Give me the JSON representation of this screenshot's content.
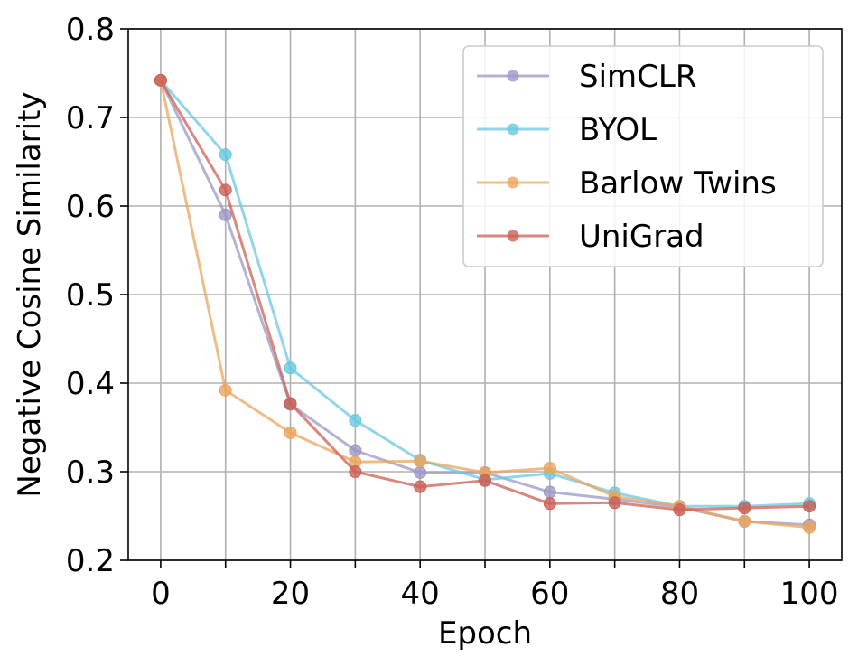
{
  "chart_data": {
    "type": "line",
    "title": "",
    "xlabel": "Epoch",
    "ylabel": "Negative Cosine Similarity",
    "xlim": [
      -5,
      105
    ],
    "ylim": [
      0.2,
      0.8
    ],
    "xticks": [
      0,
      20,
      40,
      60,
      80,
      100
    ],
    "xtick_labels": [
      "0",
      "20",
      "40",
      "60",
      "80",
      "100"
    ],
    "yticks": [
      0.2,
      0.3,
      0.4,
      0.5,
      0.6,
      0.7,
      0.8
    ],
    "ytick_labels": [
      "0.2",
      "0.3",
      "0.4",
      "0.5",
      "0.6",
      "0.7",
      "0.8"
    ],
    "grid": true,
    "grid_x": [
      0,
      10,
      20,
      30,
      40,
      50,
      60,
      70,
      80,
      90,
      100
    ],
    "legend_position": "top-right",
    "x": [
      0,
      10,
      20,
      30,
      40,
      50,
      60,
      70,
      80,
      90,
      100
    ],
    "series": [
      {
        "name": "SimCLR",
        "color": "#9b98c4",
        "values": [
          0.742,
          0.59,
          0.376,
          0.324,
          0.299,
          0.299,
          0.277,
          0.269,
          0.26,
          0.244,
          0.24
        ]
      },
      {
        "name": "BYOL",
        "color": "#6cc8e0",
        "values": [
          0.742,
          0.658,
          0.417,
          0.358,
          0.313,
          0.291,
          0.298,
          0.276,
          0.261,
          0.261,
          0.264
        ]
      },
      {
        "name": "Barlow Twins",
        "color": "#eba55e",
        "values": [
          0.742,
          0.392,
          0.344,
          0.311,
          0.312,
          0.299,
          0.304,
          0.272,
          0.261,
          0.244,
          0.237
        ]
      },
      {
        "name": "UniGrad",
        "color": "#cc6055",
        "values": [
          0.742,
          0.618,
          0.377,
          0.3,
          0.283,
          0.29,
          0.264,
          0.265,
          0.257,
          0.259,
          0.261
        ]
      }
    ]
  }
}
